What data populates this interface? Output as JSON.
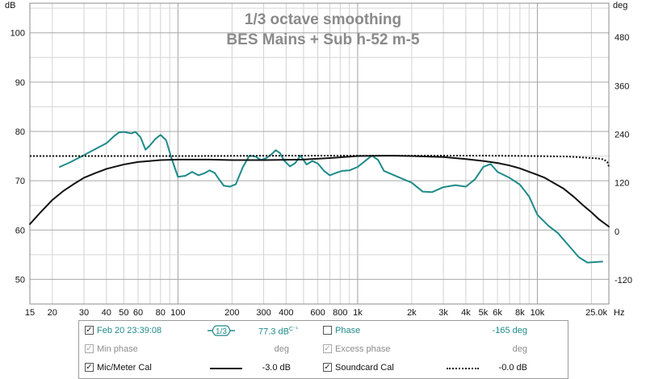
{
  "chart_data": {
    "type": "line",
    "title": "1/3 octave smoothing",
    "subtitle": "BES Mains + Sub h-52 m-5",
    "y_unit": "dB",
    "y2_unit": "deg",
    "x_unit": "Hz",
    "xlim": [
      15,
      25000
    ],
    "ylim": [
      45,
      106
    ],
    "y2lim": [
      -180,
      564
    ],
    "x_scale": "log",
    "grid": true,
    "x_ticks": [
      15,
      20,
      30,
      40,
      50,
      60,
      80,
      100,
      200,
      300,
      400,
      600,
      800,
      1000,
      2000,
      3000,
      4000,
      5000,
      6000,
      8000,
      10000,
      25000
    ],
    "x_tick_labels": [
      "15",
      "20",
      "30",
      "40",
      "50",
      "60",
      "80",
      "100",
      "200",
      "300",
      "400",
      "600",
      "800",
      "1k",
      "2k",
      "3k",
      "4k",
      "5k",
      "6k",
      "8k",
      "10k",
      "25.0k"
    ],
    "y_ticks": [
      50,
      60,
      70,
      80,
      90,
      100
    ],
    "y2_ticks": [
      -120,
      0,
      120,
      240,
      360,
      480
    ],
    "series": [
      {
        "name": "Feb 20 23:39:08",
        "color": "#1f8a8a",
        "style": "solid",
        "x": [
          22,
          25,
          30,
          35,
          40,
          44,
          47,
          50,
          55,
          58,
          62,
          66,
          70,
          75,
          80,
          86,
          92,
          100,
          110,
          120,
          130,
          140,
          150,
          160,
          170,
          180,
          195,
          210,
          230,
          250,
          270,
          290,
          310,
          330,
          350,
          370,
          390,
          420,
          450,
          480,
          520,
          560,
          600,
          650,
          700,
          760,
          820,
          900,
          1000,
          1100,
          1200,
          1300,
          1400,
          1600,
          1800,
          2000,
          2300,
          2600,
          3000,
          3500,
          4000,
          4500,
          5000,
          5500,
          6000,
          7000,
          8000,
          9000,
          10000,
          11500,
          13000,
          15000,
          17000,
          19000,
          21000,
          23000
        ],
        "values": [
          72.8,
          73.7,
          75.2,
          76.5,
          77.6,
          79.0,
          79.8,
          79.9,
          79.6,
          79.9,
          78.8,
          76.3,
          77.2,
          78.5,
          79.3,
          78.2,
          74.6,
          70.8,
          71.0,
          71.8,
          71.1,
          71.5,
          72.1,
          71.6,
          70.2,
          69.0,
          68.8,
          69.3,
          72.8,
          75.1,
          74.9,
          74.2,
          74.6,
          75.3,
          76.2,
          75.6,
          74.1,
          72.9,
          73.6,
          75.1,
          73.3,
          74.0,
          73.5,
          72.0,
          71.1,
          71.6,
          72.0,
          72.1,
          72.8,
          74.0,
          75.1,
          74.2,
          72.0,
          71.1,
          70.3,
          69.6,
          67.8,
          67.7,
          68.7,
          69.1,
          68.8,
          70.3,
          72.8,
          73.4,
          71.8,
          70.6,
          69.2,
          66.8,
          63.1,
          60.9,
          59.4,
          56.8,
          54.5,
          53.4,
          53.5,
          53.6
        ]
      },
      {
        "name": "Mic/Meter Cal",
        "color": "#111111",
        "style": "solid",
        "x": [
          15,
          17,
          20,
          23,
          26,
          30,
          35,
          40,
          50,
          60,
          70,
          80,
          100,
          150,
          200,
          300,
          500,
          700,
          1000,
          1500,
          2000,
          3000,
          4000,
          5000,
          6000,
          7000,
          8000,
          9000,
          10000,
          11000,
          12000,
          14000,
          16000,
          18000,
          20000,
          22000,
          25000
        ],
        "values": [
          61.2,
          63.4,
          66.1,
          67.9,
          69.2,
          70.6,
          71.6,
          72.4,
          73.3,
          73.8,
          74.0,
          74.2,
          74.3,
          74.3,
          74.2,
          74.2,
          74.3,
          74.6,
          75.0,
          75.1,
          75.0,
          74.8,
          74.4,
          74.0,
          73.6,
          73.1,
          72.5,
          71.8,
          71.2,
          70.6,
          69.8,
          68.4,
          66.7,
          65.0,
          63.6,
          62.2,
          60.7
        ]
      },
      {
        "name": "Soundcard Cal",
        "color": "#111111",
        "style": "dotted",
        "x": [
          15,
          50,
          100,
          500,
          1000,
          5000,
          10000,
          15000,
          18000,
          20000,
          22000,
          23500,
          24500,
          25000
        ],
        "values": [
          75.0,
          75.0,
          75.0,
          75.1,
          75.1,
          75.1,
          75.0,
          74.9,
          74.7,
          74.6,
          74.5,
          74.3,
          73.8,
          72.9
        ]
      }
    ]
  },
  "legend": {
    "row1": {
      "name": "Feb 20 23:39:08",
      "smoothing": "1/3",
      "value": "77.3 dB",
      "value_sup": "C⁻¹",
      "phase_label": "Phase",
      "phase_value": "-165 deg"
    },
    "row2": {
      "min_phase_label": "Min phase",
      "min_phase_unit": "deg",
      "excess_phase_label": "Excess phase",
      "excess_phase_unit": "deg"
    },
    "row3": {
      "mic_label": "Mic/Meter Cal",
      "mic_value": "-3.0 dB",
      "soundcard_label": "Soundcard Cal",
      "soundcard_value": "-0.0 dB"
    }
  }
}
